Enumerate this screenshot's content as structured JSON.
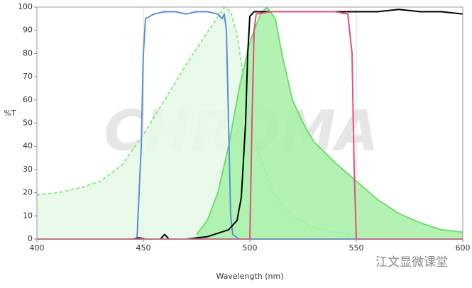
{
  "chart_data": {
    "type": "line",
    "x_label": "Wavelength (nm)",
    "y_label": "%T",
    "xlim": [
      400,
      600
    ],
    "xticks": [
      400,
      450,
      500,
      550,
      600
    ],
    "ylim": [
      0,
      100
    ],
    "yticks": [
      0,
      10,
      20,
      30,
      40,
      50,
      60,
      70,
      80,
      90,
      100
    ],
    "grid": "x",
    "watermarks": [
      "CHROMA",
      "江文显微课堂"
    ],
    "series": [
      {
        "color": "#8fe88f",
        "fill": "#e6f9e6",
        "dashed": true,
        "x": [
          400,
          410,
          420,
          430,
          440,
          450,
          460,
          470,
          480,
          485,
          488,
          491,
          494,
          497,
          500,
          505,
          510,
          515,
          520,
          530,
          540,
          548,
          549,
          550
        ],
        "values": [
          19,
          20,
          22,
          25,
          32,
          45,
          60,
          75,
          89,
          96,
          100,
          98,
          88,
          70,
          52,
          35,
          22,
          15,
          10,
          5,
          3,
          2,
          1,
          0
        ]
      },
      {
        "color": "#70dc70",
        "fill": "#a6f0a6",
        "dashed": false,
        "x": [
          475,
          480,
          485,
          490,
          495,
          500,
          505,
          508,
          512,
          515,
          520,
          525,
          530,
          540,
          550,
          560,
          570,
          580,
          590,
          600
        ],
        "values": [
          2,
          8,
          20,
          40,
          65,
          85,
          97,
          100,
          95,
          80,
          60,
          50,
          42,
          33,
          25,
          17,
          11,
          7,
          4,
          3
        ]
      },
      {
        "color": "#5b8dd9",
        "fill": null,
        "dashed": false,
        "x": [
          400,
          447,
          449,
          450,
          451,
          455,
          460,
          465,
          470,
          475,
          480,
          485,
          487,
          488,
          489,
          490,
          491,
          492,
          495,
          600
        ],
        "values": [
          0,
          0,
          40,
          80,
          95,
          97,
          98,
          98,
          97,
          98,
          98,
          97,
          95,
          97,
          90,
          50,
          10,
          2,
          0,
          0
        ]
      },
      {
        "color": "#000000",
        "fill": null,
        "dashed": false,
        "x": [
          400,
          445,
          448,
          451,
          458,
          459,
          460,
          462,
          470,
          480,
          490,
          494,
          496,
          498,
          499,
          500,
          502,
          510,
          530,
          550,
          560,
          570,
          580,
          590,
          600
        ],
        "values": [
          0,
          0,
          0.5,
          0,
          0,
          1,
          2,
          0,
          0,
          1,
          4,
          8,
          18,
          50,
          80,
          96,
          98,
          98,
          98,
          98,
          98,
          99,
          98,
          98,
          97
        ]
      },
      {
        "color": "#e0507a",
        "fill": null,
        "dashed": false,
        "x": [
          400,
          499,
          500,
          501,
          502,
          503,
          510,
          520,
          530,
          540,
          546,
          548,
          549,
          550,
          600
        ],
        "values": [
          0,
          0,
          0,
          50,
          90,
          97,
          98,
          98,
          98,
          98,
          97,
          80,
          30,
          0,
          0
        ]
      }
    ]
  }
}
